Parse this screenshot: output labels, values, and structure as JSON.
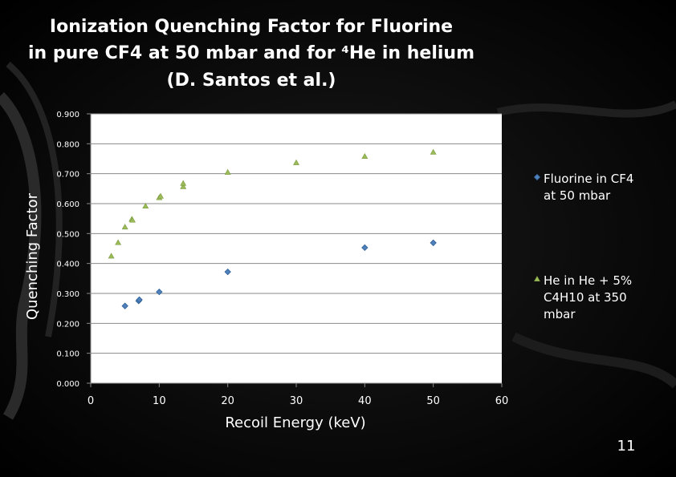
{
  "slide": {
    "page_number": "11"
  },
  "colors": {
    "plot_bg": "#ffffff",
    "series1": "#4f81bd",
    "series2": "#9bbb59"
  },
  "chart_data": {
    "type": "scatter",
    "title_lines": [
      "Ionization Quenching Factor for Fluorine",
      "in pure CF4 at 50 mbar and for ⁴He in helium",
      "(D. Santos et al.)"
    ],
    "xlabel": "Recoil Energy (keV)",
    "ylabel": "Quenching Factor",
    "xlim": [
      0,
      60
    ],
    "ylim": [
      0,
      0.9
    ],
    "x_ticks": [
      "0",
      "10",
      "20",
      "30",
      "40",
      "50",
      "60"
    ],
    "y_ticks": [
      "0.000",
      "0.100",
      "0.200",
      "0.300",
      "0.400",
      "0.500",
      "0.600",
      "0.700",
      "0.800",
      "0.900"
    ],
    "legend_position": "right",
    "grid": true,
    "series": [
      {
        "name_lines": [
          "Fluorine in CF4",
          "at 50 mbar"
        ],
        "marker": "diamond",
        "color": "#4f81bd",
        "points": [
          [
            5,
            0.258
          ],
          [
            7,
            0.275
          ],
          [
            7.1,
            0.279
          ],
          [
            10,
            0.305
          ],
          [
            20,
            0.372
          ],
          [
            40,
            0.453
          ],
          [
            50,
            0.469
          ]
        ]
      },
      {
        "name_lines": [
          "He in He + 5%",
          "C4H10 at 350",
          "mbar"
        ],
        "marker": "triangle",
        "color": "#9bbb59",
        "points": [
          [
            3,
            0.425
          ],
          [
            4,
            0.47
          ],
          [
            5,
            0.522
          ],
          [
            6,
            0.548
          ],
          [
            6.1,
            0.545
          ],
          [
            8,
            0.592
          ],
          [
            10,
            0.62
          ],
          [
            10.2,
            0.625
          ],
          [
            13.5,
            0.657
          ],
          [
            13.5,
            0.668
          ],
          [
            20,
            0.705
          ],
          [
            30,
            0.737
          ],
          [
            40,
            0.758
          ],
          [
            50,
            0.772
          ]
        ]
      }
    ]
  }
}
